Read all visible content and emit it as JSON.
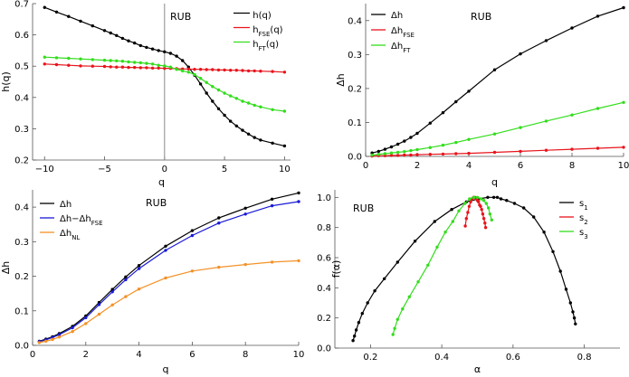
{
  "chart_data": [
    {
      "type": "line",
      "annotation": "RUB",
      "xlabel": "q",
      "ylabel": "h(q)",
      "xlim": [
        -11,
        10.5
      ],
      "ylim": [
        0.2,
        0.7
      ],
      "xticks": [
        -10,
        -5,
        0,
        5,
        10
      ],
      "xtick_labels": [
        "−10",
        "−5",
        "0",
        "5",
        "10"
      ],
      "yticks": [
        0.2,
        0.3,
        0.4,
        0.5,
        0.6,
        0.7
      ],
      "ytick_labels": [
        "0.2",
        "0.3",
        "0.4",
        "0.5",
        "0.6",
        "0.7"
      ],
      "vline": 0,
      "grid": false,
      "legend_position": "top-right",
      "series": [
        {
          "name": "h(q)",
          "color": "#000000",
          "x": [
            -10,
            -9,
            -8,
            -7,
            -6,
            -5,
            -4.5,
            -4,
            -3.5,
            -3,
            -2.5,
            -2,
            -1.5,
            -1,
            -0.5,
            0,
            0.5,
            1,
            1.5,
            2,
            2.5,
            3,
            3.5,
            4,
            4.5,
            5,
            5.5,
            6,
            6.5,
            7,
            7.5,
            8,
            9,
            10
          ],
          "y": [
            0.688,
            0.673,
            0.659,
            0.644,
            0.629,
            0.614,
            0.606,
            0.598,
            0.589,
            0.581,
            0.574,
            0.566,
            0.56,
            0.555,
            0.55,
            0.546,
            0.541,
            0.532,
            0.518,
            0.497,
            0.471,
            0.443,
            0.414,
            0.388,
            0.364,
            0.343,
            0.324,
            0.309,
            0.295,
            0.283,
            0.272,
            0.264,
            0.254,
            0.245
          ]
        },
        {
          "name": "hFSE(q)",
          "label_main": "h",
          "label_sub": "FSE",
          "label_tail": "(q)",
          "color": "#e8141c",
          "x": [
            -10,
            -9,
            -8,
            -7,
            -6,
            -5,
            -4.5,
            -4,
            -3.5,
            -3,
            -2.5,
            -2,
            -1.5,
            -1,
            -0.5,
            0,
            0.5,
            1,
            1.5,
            2,
            2.5,
            3,
            3.5,
            4,
            4.5,
            5,
            5.5,
            6,
            6.5,
            7,
            7.5,
            8,
            9,
            10
          ],
          "y": [
            0.507,
            0.505,
            0.503,
            0.501,
            0.5,
            0.499,
            0.498,
            0.497,
            0.497,
            0.496,
            0.496,
            0.495,
            0.495,
            0.494,
            0.494,
            0.493,
            0.493,
            0.492,
            0.491,
            0.491,
            0.49,
            0.49,
            0.489,
            0.489,
            0.488,
            0.488,
            0.487,
            0.487,
            0.486,
            0.485,
            0.485,
            0.484,
            0.483,
            0.481
          ]
        },
        {
          "name": "hFT(q)",
          "label_main": "h",
          "label_sub": "FT",
          "label_tail": "(q)",
          "color": "#33dd1d",
          "x": [
            -10,
            -9,
            -8,
            -7,
            -6,
            -5,
            -4.5,
            -4,
            -3.5,
            -3,
            -2.5,
            -2,
            -1.5,
            -1,
            -0.5,
            0,
            0.5,
            1,
            1.5,
            2,
            2.5,
            3,
            3.5,
            4,
            4.5,
            5,
            5.5,
            6,
            6.5,
            7,
            7.5,
            8,
            9,
            10
          ],
          "y": [
            0.529,
            0.527,
            0.525,
            0.523,
            0.521,
            0.519,
            0.518,
            0.517,
            0.516,
            0.514,
            0.512,
            0.511,
            0.509,
            0.507,
            0.503,
            0.501,
            0.497,
            0.49,
            0.485,
            0.481,
            0.473,
            0.461,
            0.448,
            0.435,
            0.424,
            0.414,
            0.405,
            0.397,
            0.388,
            0.382,
            0.375,
            0.37,
            0.361,
            0.356
          ]
        }
      ]
    },
    {
      "type": "line",
      "annotation": "RUB",
      "xlabel": "q",
      "ylabel": "Δh",
      "xlim": [
        0,
        10
      ],
      "ylim": [
        0,
        0.45
      ],
      "xticks": [
        0,
        2,
        4,
        6,
        8,
        10
      ],
      "xtick_labels": [
        "0",
        "2",
        "4",
        "6",
        "8",
        "10"
      ],
      "yticks": [
        0.0,
        0.1,
        0.2,
        0.3,
        0.4
      ],
      "ytick_labels": [
        "0.0",
        "0.1",
        "0.2",
        "0.3",
        "0.4"
      ],
      "grid": false,
      "legend_position": "top-left",
      "series": [
        {
          "name": "Δh",
          "color": "#000000",
          "x": [
            0.25,
            0.5,
            0.75,
            1,
            1.25,
            1.5,
            1.75,
            2,
            2.5,
            3,
            3.5,
            4,
            5,
            6,
            7,
            8,
            9,
            10
          ],
          "y": [
            0.01,
            0.015,
            0.021,
            0.028,
            0.036,
            0.045,
            0.056,
            0.068,
            0.098,
            0.129,
            0.161,
            0.192,
            0.255,
            0.302,
            0.341,
            0.378,
            0.413,
            0.438
          ]
        },
        {
          "name": "ΔhFSE",
          "label_main": "Δh",
          "label_sub": "FSE",
          "label_tail": "",
          "color": "#e8141c",
          "x": [
            0.25,
            0.5,
            0.75,
            1,
            1.25,
            1.5,
            1.75,
            2,
            2.5,
            3,
            3.5,
            4,
            5,
            6,
            7,
            8,
            9,
            10
          ],
          "y": [
            0.001,
            0.002,
            0.002,
            0.003,
            0.003,
            0.004,
            0.004,
            0.005,
            0.006,
            0.007,
            0.008,
            0.009,
            0.012,
            0.015,
            0.018,
            0.021,
            0.024,
            0.027
          ]
        },
        {
          "name": "ΔhFT",
          "label_main": "Δh",
          "label_sub": "FT",
          "label_tail": "",
          "color": "#33dd1d",
          "x": [
            0.25,
            0.5,
            0.75,
            1,
            1.25,
            1.5,
            1.75,
            2,
            2.5,
            3,
            3.5,
            4,
            5,
            6,
            7,
            8,
            9,
            10
          ],
          "y": [
            0.004,
            0.006,
            0.008,
            0.01,
            0.012,
            0.014,
            0.017,
            0.02,
            0.026,
            0.033,
            0.041,
            0.05,
            0.066,
            0.085,
            0.104,
            0.122,
            0.141,
            0.159
          ]
        }
      ]
    },
    {
      "type": "line",
      "annotation": "RUB",
      "xlabel": "q",
      "ylabel": "Δh",
      "xlim": [
        0,
        10
      ],
      "ylim": [
        0,
        0.45
      ],
      "xticks": [
        0,
        2,
        4,
        6,
        8,
        10
      ],
      "xtick_labels": [
        "0",
        "2",
        "4",
        "6",
        "8",
        "10"
      ],
      "yticks": [
        0.0,
        0.1,
        0.2,
        0.3,
        0.4
      ],
      "ytick_labels": [
        "0.0",
        "0.1",
        "0.2",
        "0.3",
        "0.4"
      ],
      "grid": false,
      "legend_position": "top-left",
      "series": [
        {
          "name": "Δh",
          "color": "#000000",
          "x": [
            0.25,
            0.5,
            0.75,
            1,
            1.5,
            2,
            2.5,
            3,
            3.5,
            4,
            5,
            6,
            7,
            8,
            9,
            10
          ],
          "y": [
            0.012,
            0.018,
            0.025,
            0.034,
            0.055,
            0.085,
            0.124,
            0.162,
            0.198,
            0.231,
            0.287,
            0.332,
            0.369,
            0.397,
            0.423,
            0.441
          ]
        },
        {
          "name": "Δh−ΔhFSE",
          "label_main": "Δh−Δh",
          "label_sub": "FSE",
          "label_tail": "",
          "color": "#1a1ad6",
          "x": [
            0.25,
            0.5,
            0.75,
            1,
            1.5,
            2,
            2.5,
            3,
            3.5,
            4,
            5,
            6,
            7,
            8,
            9,
            10
          ],
          "y": [
            0.011,
            0.016,
            0.023,
            0.031,
            0.051,
            0.08,
            0.118,
            0.155,
            0.19,
            0.222,
            0.275,
            0.318,
            0.354,
            0.38,
            0.404,
            0.416
          ]
        },
        {
          "name": "ΔhNL",
          "label_main": "Δh",
          "label_sub": "NL",
          "label_tail": "",
          "color": "#f39227",
          "x": [
            0.25,
            0.5,
            0.75,
            1,
            1.5,
            2,
            2.5,
            3,
            3.5,
            4,
            5,
            6,
            7,
            8,
            9,
            10
          ],
          "y": [
            0.008,
            0.012,
            0.017,
            0.024,
            0.04,
            0.063,
            0.09,
            0.117,
            0.141,
            0.163,
            0.195,
            0.215,
            0.226,
            0.234,
            0.241,
            0.245
          ]
        }
      ]
    },
    {
      "type": "line",
      "annotation": "RUB",
      "xlabel": "α",
      "ylabel": "f(α)",
      "xlim": [
        0.1,
        0.9
      ],
      "ylim": [
        0,
        1.05
      ],
      "xticks": [
        0.2,
        0.4,
        0.6,
        0.8
      ],
      "xtick_labels": [
        "0.2",
        "0.4",
        "0.6",
        "0.8"
      ],
      "yticks": [
        0.0,
        0.2,
        0.4,
        0.6,
        0.8,
        1.0
      ],
      "ytick_labels": [
        "0.0",
        "0.2",
        "0.4",
        "0.6",
        "0.8",
        "1.0"
      ],
      "grid": false,
      "legend_position": "top-right",
      "series": [
        {
          "name": "s1",
          "label_main": "s",
          "label_sub": "1",
          "label_tail": "",
          "color": "#000000",
          "x": [
            0.151,
            0.155,
            0.16,
            0.167,
            0.177,
            0.192,
            0.212,
            0.239,
            0.276,
            0.325,
            0.38,
            0.428,
            0.469,
            0.503,
            0.529,
            0.546,
            0.556,
            0.566,
            0.582,
            0.604,
            0.63,
            0.658,
            0.687,
            0.712,
            0.733,
            0.749,
            0.761,
            0.768,
            0.772,
            0.775
          ],
          "y": [
            0.05,
            0.08,
            0.12,
            0.17,
            0.23,
            0.3,
            0.38,
            0.46,
            0.57,
            0.71,
            0.84,
            0.92,
            0.97,
            0.99,
            1.0,
            1.0,
            1.0,
            0.99,
            0.98,
            0.96,
            0.93,
            0.87,
            0.77,
            0.64,
            0.51,
            0.39,
            0.3,
            0.24,
            0.2,
            0.16
          ]
        },
        {
          "name": "s2",
          "label_main": "s",
          "label_sub": "2",
          "label_tail": "",
          "color": "#e8141c",
          "x": [
            0.466,
            0.469,
            0.473,
            0.477,
            0.481,
            0.485,
            0.489,
            0.493,
            0.497,
            0.5,
            0.503,
            0.506,
            0.509,
            0.512,
            0.515,
            0.518,
            0.521,
            0.523
          ],
          "y": [
            0.81,
            0.86,
            0.9,
            0.94,
            0.97,
            0.99,
            1.0,
            1.0,
            0.99,
            0.98,
            0.97,
            0.95,
            0.94,
            0.92,
            0.89,
            0.86,
            0.83,
            0.8
          ]
        },
        {
          "name": "s3",
          "label_main": "s",
          "label_sub": "3",
          "label_tail": "",
          "color": "#33dd1d",
          "x": [
            0.263,
            0.268,
            0.276,
            0.29,
            0.309,
            0.334,
            0.361,
            0.387,
            0.41,
            0.431,
            0.448,
            0.465,
            0.478,
            0.49,
            0.5,
            0.51,
            0.518,
            0.525,
            0.531,
            0.535,
            0.54
          ],
          "y": [
            0.09,
            0.13,
            0.19,
            0.26,
            0.34,
            0.44,
            0.55,
            0.67,
            0.77,
            0.84,
            0.91,
            0.96,
            0.99,
            1.0,
            1.0,
            0.99,
            0.98,
            0.96,
            0.93,
            0.89,
            0.85
          ]
        }
      ]
    }
  ]
}
